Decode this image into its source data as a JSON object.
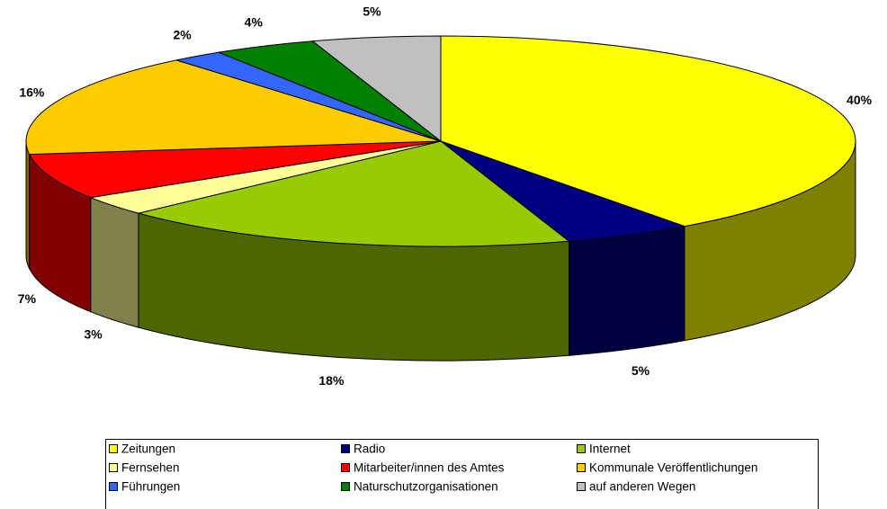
{
  "chart_data": {
    "type": "pie3d",
    "categories": [
      "Zeitungen",
      "Radio",
      "Internet",
      "Fernsehen",
      "Mitarbeiter/innen des Amtes",
      "Kommunale Veröffentlichungen",
      "Führungen",
      "Naturschutzorganisationen",
      "auf anderen Wegen"
    ],
    "values": [
      40,
      5,
      18,
      3,
      7,
      16,
      2,
      4,
      5
    ],
    "value_labels": [
      "40%",
      "5%",
      "18%",
      "3%",
      "7%",
      "16%",
      "2%",
      "4%",
      "5%"
    ],
    "colors": [
      "#ffff00",
      "#000080",
      "#99cc00",
      "#ffff99",
      "#ff0000",
      "#ffcc00",
      "#3366ff",
      "#008000",
      "#c0c0c0"
    ],
    "legend": "bottom"
  }
}
